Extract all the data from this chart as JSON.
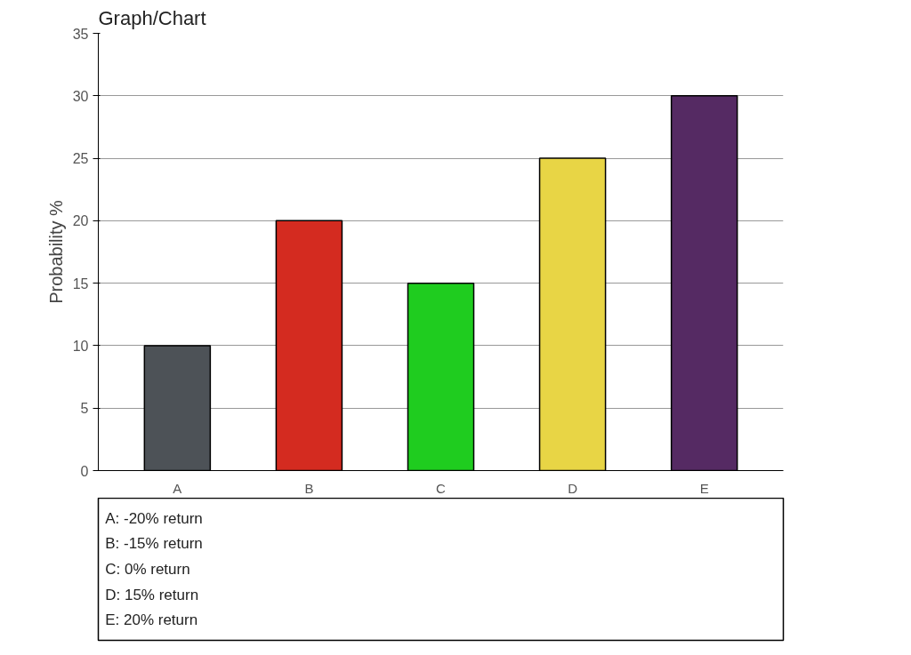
{
  "chart_data": {
    "type": "bar",
    "title": "Graph/Chart",
    "ylabel": "Probability %",
    "categories": [
      "A",
      "B",
      "C",
      "D",
      "E"
    ],
    "values": [
      10,
      20,
      15,
      25,
      30
    ],
    "colors": [
      "#4d5257",
      "#d42b20",
      "#1fcc1f",
      "#e8d545",
      "#552a63"
    ],
    "ylim": [
      0,
      35
    ],
    "yticks": [
      0,
      5,
      10,
      15,
      20,
      25,
      30,
      35
    ],
    "grid": "y",
    "annotations": [
      "A: -20% return",
      "B: -15% return",
      "C: 0% return",
      "D: 15% return",
      "E: 20% return"
    ]
  }
}
